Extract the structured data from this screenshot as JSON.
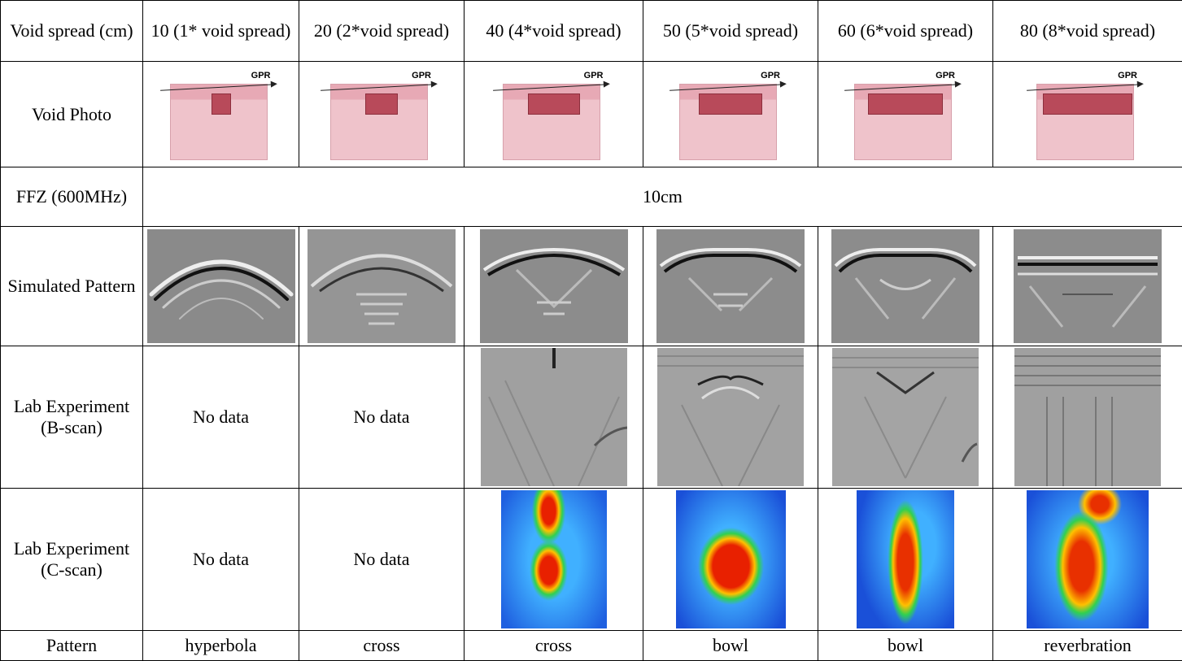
{
  "photo_label": "GPR",
  "table": {
    "rows": [
      [
        "Void spread (cm)",
        "10 (1* void spread)",
        "20 (2*void spread)",
        "40 (4*void spread)",
        "50 (5*void spread)",
        "60 (6*void spread)",
        "80 (8*void spread)"
      ],
      [
        "Void Photo"
      ],
      [
        "FFZ (600MHz)",
        "10cm"
      ],
      [
        "Simulated Pattern"
      ],
      [
        "Lab Experiment (B-scan)",
        "No data",
        "No data"
      ],
      [
        "Lab Experiment (C-scan)",
        "No data",
        "No data"
      ],
      [
        "Pattern",
        "hyperbola",
        "cross",
        "cross",
        "bowl",
        "bowl",
        "reverbration"
      ]
    ]
  }
}
